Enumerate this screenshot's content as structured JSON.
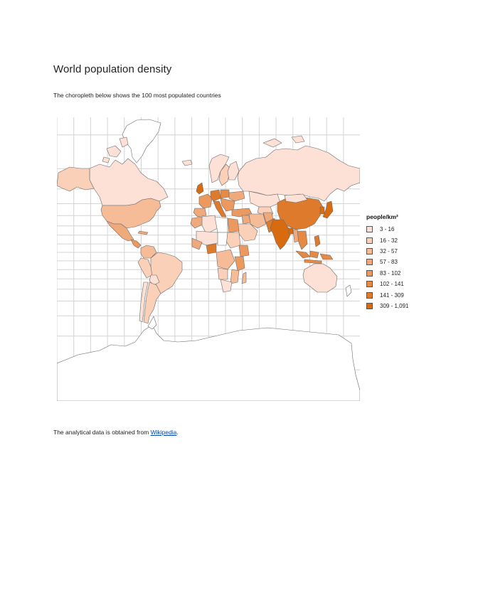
{
  "heading": {
    "title": "World population density"
  },
  "intro": {
    "text": "The choropleth below shows the 100 most populated countries"
  },
  "legend": {
    "title": "people/km²",
    "items": [
      {
        "label": "3 - 16",
        "color": "#fde0d6"
      },
      {
        "label": "16 - 32",
        "color": "#fbd0b8"
      },
      {
        "label": "32 - 57",
        "color": "#f6bc98"
      },
      {
        "label": "57 - 83",
        "color": "#f0a97a"
      },
      {
        "label": "83 - 102",
        "color": "#eb995f"
      },
      {
        "label": "102 - 141",
        "color": "#e48a45"
      },
      {
        "label": "141 - 309",
        "color": "#de7a2b"
      },
      {
        "label": "309 - 1,091",
        "color": "#d86a10"
      }
    ]
  },
  "footer": {
    "text": "The analytical data is obtained from ",
    "link_text": "Wikipedia",
    "suffix": "."
  },
  "map": {
    "projection": "mercator",
    "grid": true,
    "ocean_color": "#ffffff",
    "grid_color": "#d4d4d4",
    "border_color": "#6a6a6a",
    "no_data_color": "#ffffff"
  }
}
